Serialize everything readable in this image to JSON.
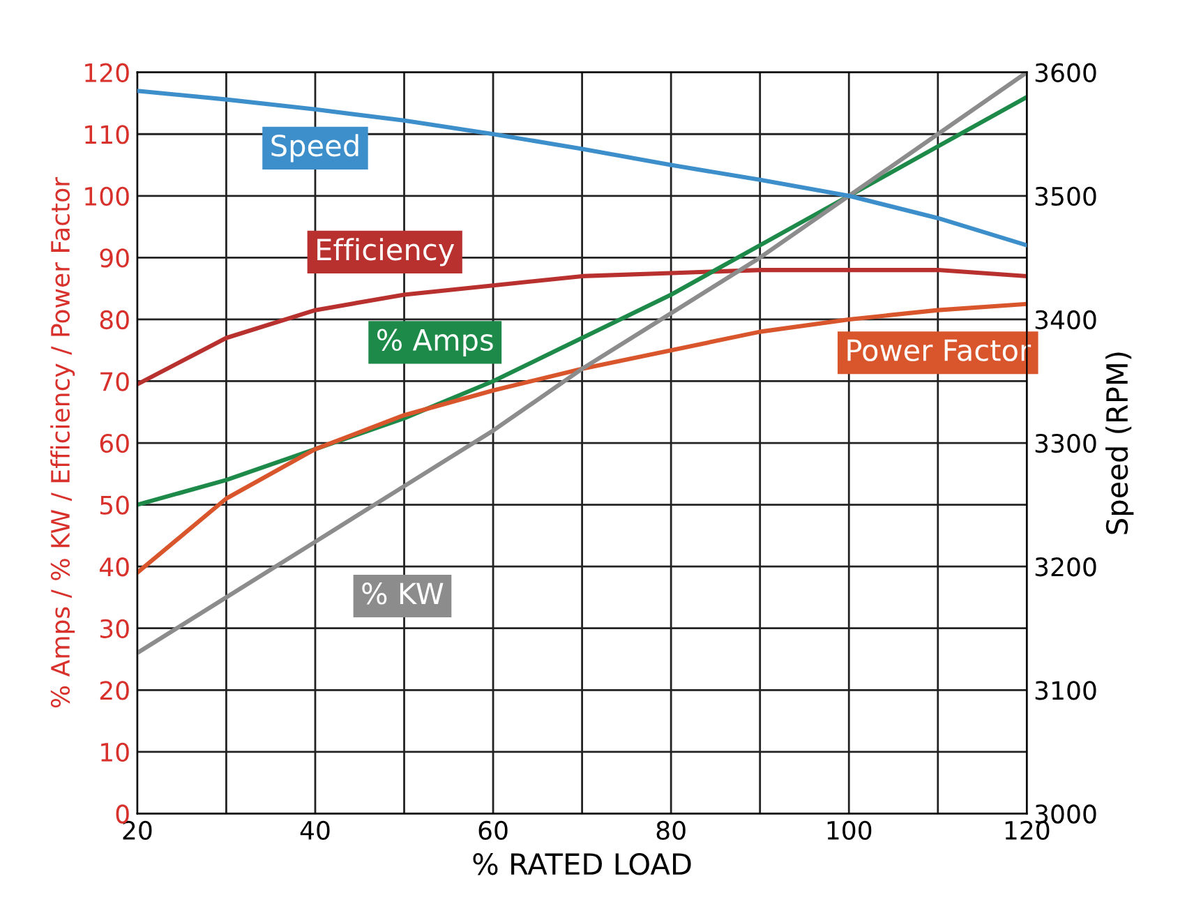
{
  "chart_data": {
    "type": "line",
    "xlabel": "% RATED LOAD",
    "ylabel": "% Amps / % KW / Efficiency / Power Factor",
    "y2label": "Speed (RPM)",
    "x": [
      20,
      30,
      40,
      50,
      60,
      70,
      80,
      90,
      100,
      110,
      120
    ],
    "series": [
      {
        "name": "Speed",
        "color": "#3d8fcb",
        "axis": "y2",
        "values": [
          3585,
          3578,
          3570,
          3561,
          3550,
          3538,
          3525,
          3513,
          3500,
          3482,
          3460
        ]
      },
      {
        "name": "Efficiency",
        "color": "#b8312f",
        "values": [
          69.5,
          77,
          81.5,
          84,
          85.5,
          87,
          87.5,
          88,
          88,
          88,
          87
        ]
      },
      {
        "name": "% Amps",
        "color": "#1e8a4a",
        "values": [
          50,
          54,
          59,
          64,
          70,
          77,
          84,
          92,
          100,
          108,
          116
        ]
      },
      {
        "name": "Power Factor",
        "color": "#d9552c",
        "values": [
          39,
          51,
          59,
          64.5,
          68.5,
          72,
          75,
          78,
          80,
          81.5,
          82.5
        ]
      },
      {
        "name": "% KW",
        "color": "#8c8c8c",
        "values": [
          26,
          35,
          44,
          53,
          62,
          72,
          81,
          90,
          100,
          110,
          120
        ]
      }
    ],
    "xlim": [
      20,
      120
    ],
    "xticks": [
      20,
      40,
      60,
      80,
      100,
      120
    ],
    "ylim": [
      0,
      120
    ],
    "yticks": [
      0,
      10,
      20,
      30,
      40,
      50,
      60,
      70,
      80,
      90,
      100,
      110,
      120
    ],
    "y2lim": [
      3000,
      3600
    ],
    "y2ticks": [
      3000,
      3100,
      3200,
      3300,
      3400,
      3500,
      3600
    ],
    "grid": true,
    "legend": false,
    "marker": "none",
    "line_style": "solid"
  }
}
